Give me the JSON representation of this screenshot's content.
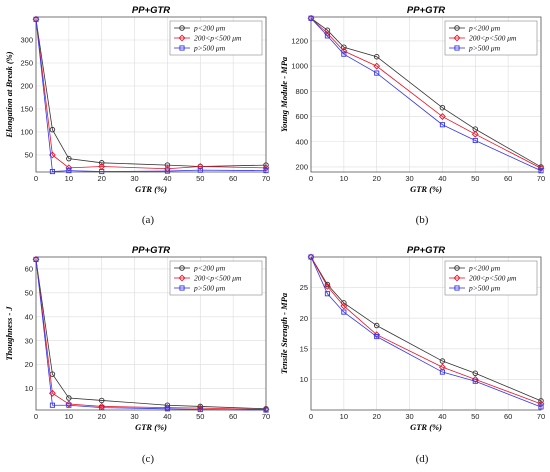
{
  "colors": {
    "black": "#333333",
    "red": "#e8142a",
    "blue": "#3535e8",
    "grid": "#dcdcdc",
    "axis": "#555555"
  },
  "chart_data": [
    {
      "panel_label": "(a)",
      "type": "line",
      "title": "PP+GTR",
      "xlabel": "GTR (%)",
      "ylabel": "Elongation at Break (%)",
      "xlim": [
        0,
        70
      ],
      "ylim": [
        13,
        350
      ],
      "xticks": [
        0,
        10,
        20,
        30,
        40,
        50,
        60,
        70
      ],
      "yticks": [
        50,
        100,
        150,
        200,
        250,
        300
      ],
      "x": [
        0,
        5,
        10,
        20,
        40,
        50,
        70
      ],
      "grid": true,
      "legend_position": "top-right",
      "series": [
        {
          "name": "p<200 μm",
          "color": "black",
          "marker": "circle",
          "values": [
            345,
            105,
            42,
            33,
            28,
            25,
            28
          ]
        },
        {
          "name": "200<p<500 μm",
          "color": "red",
          "marker": "diamond",
          "values": [
            345,
            50,
            22,
            25,
            20,
            25,
            22
          ]
        },
        {
          "name": "p>500 μm",
          "color": "blue",
          "marker": "square",
          "values": [
            345,
            14,
            16,
            14,
            15,
            17,
            16
          ]
        }
      ]
    },
    {
      "panel_label": "(b)",
      "type": "line",
      "title": "PP+GTR",
      "xlabel": "GTR (%)",
      "ylabel": "Young Module - MPa",
      "xlim": [
        0,
        70
      ],
      "ylim": [
        160,
        1390
      ],
      "xticks": [
        0,
        10,
        20,
        30,
        40,
        50,
        60,
        70
      ],
      "yticks": [
        200,
        400,
        600,
        800,
        1000,
        1200
      ],
      "x": [
        0,
        5,
        10,
        20,
        40,
        50,
        70
      ],
      "grid": true,
      "legend_position": "top-right",
      "series": [
        {
          "name": "p<200 μm",
          "color": "black",
          "marker": "circle",
          "values": [
            1380,
            1285,
            1150,
            1075,
            670,
            500,
            200
          ]
        },
        {
          "name": "200<p<500 μm",
          "color": "red",
          "marker": "diamond",
          "values": [
            1380,
            1260,
            1120,
            1000,
            600,
            460,
            190
          ]
        },
        {
          "name": "p>500 μm",
          "color": "blue",
          "marker": "square",
          "values": [
            1380,
            1240,
            1095,
            945,
            535,
            410,
            170
          ]
        }
      ]
    },
    {
      "panel_label": "(c)",
      "type": "line",
      "title": "PP+GTR",
      "xlabel": "GTR (%)",
      "ylabel": "Thoughness - J",
      "xlim": [
        0,
        70
      ],
      "ylim": [
        1,
        65
      ],
      "xticks": [
        0,
        10,
        20,
        30,
        40,
        50,
        60,
        70
      ],
      "yticks": [
        10,
        20,
        30,
        40,
        50,
        60
      ],
      "x": [
        0,
        5,
        10,
        20,
        40,
        50,
        70
      ],
      "grid": true,
      "legend_position": "top-right",
      "series": [
        {
          "name": "p<200 μm",
          "color": "black",
          "marker": "circle",
          "values": [
            64,
            16,
            6,
            5,
            3,
            2.5,
            1.5
          ]
        },
        {
          "name": "200<p<500 μm",
          "color": "red",
          "marker": "diamond",
          "values": [
            64,
            8,
            3.5,
            2.5,
            2,
            1.8,
            1.2
          ]
        },
        {
          "name": "p>500 μm",
          "color": "blue",
          "marker": "square",
          "values": [
            64,
            3,
            3,
            2,
            1.5,
            1.2,
            1
          ]
        }
      ]
    },
    {
      "panel_label": "(d)",
      "type": "line",
      "title": "PP+GTR",
      "xlabel": "GTR (%)",
      "ylabel": "Tensile Strength - MPa",
      "xlim": [
        0,
        70
      ],
      "ylim": [
        5,
        30
      ],
      "xticks": [
        0,
        10,
        20,
        30,
        40,
        50,
        60,
        70
      ],
      "yticks": [
        10,
        15,
        20,
        25
      ],
      "x": [
        0,
        5,
        10,
        20,
        40,
        50,
        70
      ],
      "grid": true,
      "legend_position": "top-right",
      "series": [
        {
          "name": "p<200 μm",
          "color": "black",
          "marker": "circle",
          "values": [
            30,
            25.5,
            22.5,
            18.8,
            13,
            11,
            6.5
          ]
        },
        {
          "name": "200<p<500 μm",
          "color": "red",
          "marker": "diamond",
          "values": [
            30,
            25.2,
            22,
            17.3,
            12,
            10,
            6
          ]
        },
        {
          "name": "p>500 μm",
          "color": "blue",
          "marker": "square",
          "values": [
            30,
            24,
            21,
            17,
            11.2,
            9.7,
            5.5
          ]
        }
      ]
    }
  ]
}
